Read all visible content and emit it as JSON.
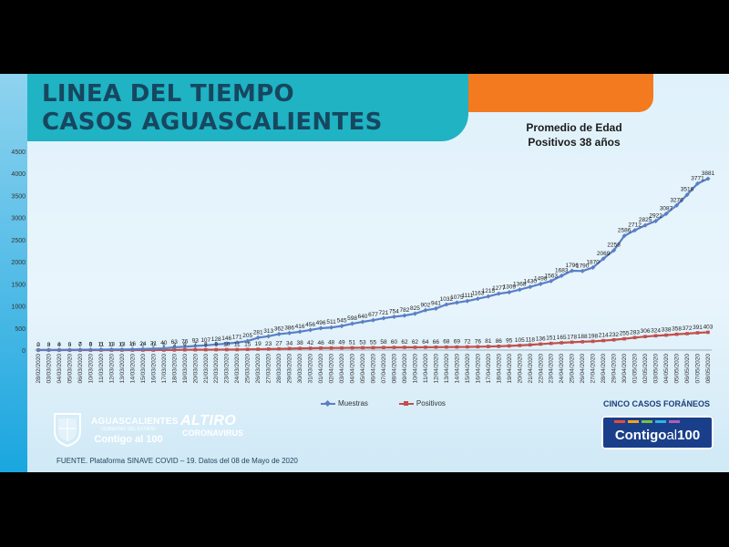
{
  "header": {
    "title_line1": "LINEA DEL TIEMPO",
    "title_line2": "CASOS AGUASCALIENTES"
  },
  "subtitle": {
    "line1": "Promedio de Edad",
    "line2": "Positivos 38 años"
  },
  "colors": {
    "muestras": "#5a7fc4",
    "positivos": "#c0504d",
    "title_bg": "#1fb3c4",
    "orange": "#f47a20",
    "title_text": "#16475f"
  },
  "chart_data": {
    "type": "line",
    "title": "LINEA DEL TIEMPO CASOS AGUASCALIENTES",
    "ylim": [
      0,
      4500
    ],
    "yticks": [
      0,
      500,
      1000,
      1500,
      2000,
      2500,
      3000,
      3500,
      4000,
      4500
    ],
    "grid": false,
    "legend_position": "bottom",
    "categories": [
      "28/02/2020",
      "03/03/2020",
      "04/03/2020",
      "05/03/2020",
      "06/03/2020",
      "10/03/2020",
      "11/03/2020",
      "12/03/2020",
      "13/03/2020",
      "14/03/2020",
      "15/03/2020",
      "16/03/2020",
      "17/03/2020",
      "18/03/2020",
      "19/03/2020",
      "20/03/2020",
      "21/03/2020",
      "22/03/2020",
      "23/03/2020",
      "24/03/2020",
      "25/03/2020",
      "26/03/2020",
      "27/03/2020",
      "28/03/2020",
      "29/03/2020",
      "30/03/2020",
      "31/03/2020",
      "01/04/2020",
      "02/04/2020",
      "03/04/2020",
      "04/04/2020",
      "05/04/2020",
      "06/04/2020",
      "07/04/2020",
      "08/04/2020",
      "09/04/2020",
      "10/04/2020",
      "11/04/2020",
      "12/04/2020",
      "13/04/2020",
      "14/04/2020",
      "15/04/2020",
      "16/04/2020",
      "17/04/2020",
      "18/04/2020",
      "19/04/2020",
      "20/04/2020",
      "21/04/2020",
      "22/04/2020",
      "23/04/2020",
      "24/04/2020",
      "25/04/2020",
      "26/04/2020",
      "27/04/2020",
      "28/04/2020",
      "29/04/2020",
      "30/04/2020",
      "01/05/2020",
      "02/05/2020",
      "03/05/2020",
      "04/05/2020",
      "05/05/2020",
      "06/05/2020",
      "07/05/2020",
      "08/05/2020"
    ],
    "series": [
      {
        "name": "Muestras",
        "values": [
          2,
          3,
          4,
          5,
          7,
          8,
          11,
          13,
          13,
          16,
          24,
          31,
          40,
          63,
          76,
          93,
          107,
          128,
          146,
          171,
          205,
          281,
          313,
          362,
          386,
          416,
          456,
          496,
          511,
          545,
          598,
          640,
          677,
          721,
          754,
          782,
          825,
          902,
          941,
          1032,
          1075,
          1111,
          1163,
          1215,
          1277,
          1309,
          1368,
          1430,
          1498,
          1563,
          1683,
          1796,
          1790,
          1870,
          2069,
          2258,
          2586,
          2712,
          2825,
          2922,
          3087,
          3276,
          3516,
          3771,
          3881
        ]
      },
      {
        "name": "Positivos",
        "values": [
          0,
          0,
          0,
          0,
          0,
          0,
          0,
          0,
          0,
          0,
          0,
          0,
          1,
          3,
          6,
          7,
          8,
          9,
          10,
          11,
          15,
          19,
          23,
          27,
          34,
          38,
          42,
          46,
          48,
          49,
          51,
          53,
          55,
          58,
          60,
          62,
          62,
          64,
          66,
          68,
          69,
          72,
          76,
          81,
          86,
          95,
          105,
          118,
          136,
          151,
          165,
          178,
          188,
          198,
          214,
          232,
          255,
          283,
          306,
          324,
          338,
          358,
          372,
          391,
          403
        ]
      }
    ]
  },
  "legend": {
    "muestras": "Muestras",
    "positivos": "Positivos"
  },
  "footer": {
    "foraneos": "CINCO CASOS FORÁNEOS",
    "contigo_big_1": "Contigo",
    "contigo_big_2": "al",
    "contigo_big_3": "100",
    "gov_line1": "AGUASCALIENTES",
    "gov_line2": "GOBIERNO DEL ESTADO",
    "gov_line3": "Contigo al 100",
    "altiro_line1": "ALTIRO",
    "altiro_line2": "CORONAVIRUS",
    "source": "FUENTE. Plataforma SINAVE COVID – 19. Datos del 08 de Mayo de 2020"
  }
}
